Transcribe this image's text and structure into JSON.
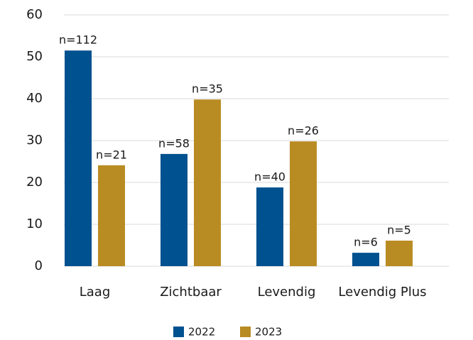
{
  "chart_data": {
    "type": "bar",
    "categories": [
      "Laag",
      "Zichtbaar",
      "Levendig",
      "Levendig Plus"
    ],
    "series": [
      {
        "name": "2022",
        "color": "#00518f",
        "values": [
          51.5,
          26.8,
          18.8,
          3.2
        ],
        "labels": [
          "n=112",
          "n=58",
          "n=40",
          "n=6"
        ]
      },
      {
        "name": "2023",
        "color": "#b98c23",
        "values": [
          24.1,
          39.8,
          29.8,
          6.1
        ],
        "labels": [
          "n=21",
          "n=35",
          "n=26",
          "n=5"
        ]
      }
    ],
    "ylim": [
      0,
      60
    ],
    "yticks": [
      0,
      10,
      20,
      30,
      40,
      50,
      60
    ],
    "grid": true
  }
}
